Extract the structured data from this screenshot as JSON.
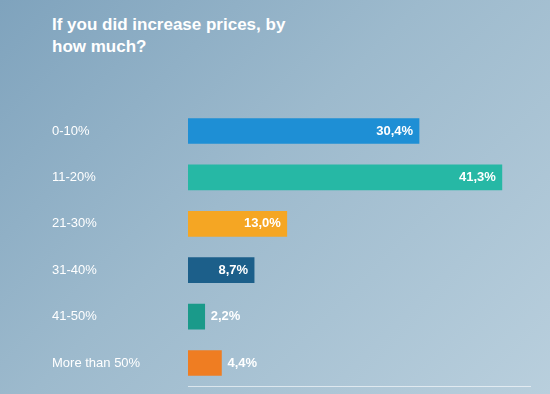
{
  "chart_data": {
    "type": "bar",
    "orientation": "horizontal",
    "title": "If you did increase prices, by how much?",
    "categories": [
      "0-10%",
      "11-20%",
      "21-30%",
      "31-40%",
      "41-50%",
      "More than 50%"
    ],
    "values": [
      30.4,
      41.3,
      13.0,
      8.7,
      2.2,
      4.4
    ],
    "value_labels": [
      "30,4%",
      "41,3%",
      "13,0%",
      "8,7%",
      "2,2%",
      "4,4%"
    ],
    "colors": [
      "#1e8fd5",
      "#26b8a5",
      "#f5a623",
      "#1c5f8a",
      "#1a9a8a",
      "#ef7d22"
    ],
    "xlim": [
      0,
      45
    ],
    "data_labels": true,
    "tick_labels": "y",
    "grid": false
  }
}
